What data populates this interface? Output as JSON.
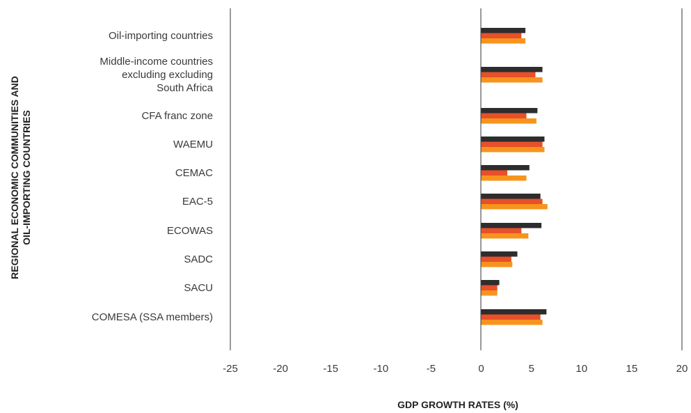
{
  "chart_data": {
    "type": "bar",
    "orientation": "horizontal",
    "xlabel": "GDP GROWTH RATES (%)",
    "ylabel_lines": [
      "REGIONAL ECONOMIC COMMUNITIES AND",
      "OIL-IMPORTING COUNTRIES"
    ],
    "xlim": [
      -25,
      20
    ],
    "xticks": [
      -25,
      -20,
      -15,
      -10,
      -5,
      0,
      5,
      10,
      15,
      20
    ],
    "grid": false,
    "legend": "none",
    "categories": [
      {
        "lines": [
          "Oil-importing countries"
        ]
      },
      {
        "lines": [
          "Middle-income countries",
          "excluding excluding",
          "South Africa"
        ]
      },
      {
        "lines": [
          "CFA franc zone"
        ]
      },
      {
        "lines": [
          "WAEMU"
        ]
      },
      {
        "lines": [
          "CEMAC"
        ]
      },
      {
        "lines": [
          "EAC-5"
        ]
      },
      {
        "lines": [
          "ECOWAS"
        ]
      },
      {
        "lines": [
          "SADC"
        ]
      },
      {
        "lines": [
          "SACU"
        ]
      },
      {
        "lines": [
          "COMESA (SSA members)"
        ]
      }
    ],
    "series": [
      {
        "color": "#2d2d2d",
        "values": [
          4.4,
          6.1,
          5.6,
          6.3,
          4.8,
          5.9,
          6.0,
          3.6,
          1.8,
          6.5
        ]
      },
      {
        "color": "#e8502a",
        "values": [
          4.0,
          5.4,
          4.5,
          6.1,
          2.6,
          6.1,
          4.0,
          3.0,
          1.6,
          5.9
        ]
      },
      {
        "color": "#f7941d",
        "values": [
          4.4,
          6.1,
          5.5,
          6.3,
          4.5,
          6.6,
          4.7,
          3.1,
          1.6,
          6.1
        ]
      }
    ]
  }
}
